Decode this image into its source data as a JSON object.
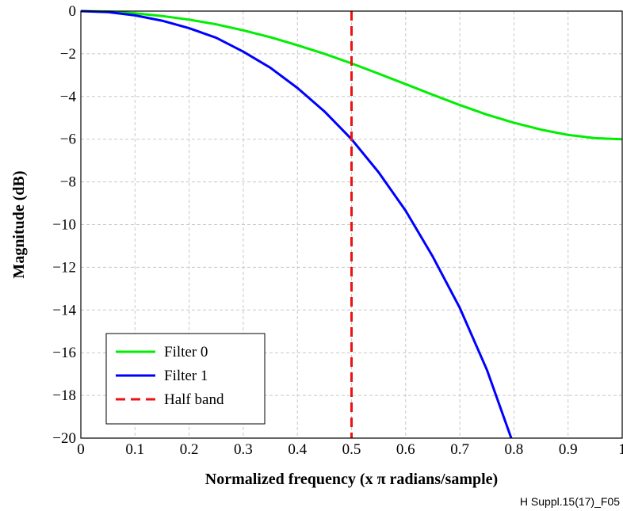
{
  "chart_data": {
    "type": "line",
    "xlabel": "Normalized frequency (x π radians/sample)",
    "ylabel": "Magnitude (dB)",
    "xlim": [
      0,
      1
    ],
    "ylim": [
      -20,
      0
    ],
    "x_ticks": [
      "0",
      "0.1",
      "0.2",
      "0.3",
      "0.4",
      "0.5",
      "0.6",
      "0.7",
      "0.8",
      "0.9",
      "1"
    ],
    "y_ticks": [
      "0",
      "−2",
      "−4",
      "−6",
      "−8",
      "−10",
      "−12",
      "−14",
      "−16",
      "−18",
      "−20"
    ],
    "grid": true,
    "legend_position": "bottom-left",
    "series": [
      {
        "name": "Filter 0",
        "color": "#00ee00",
        "style": "solid",
        "x": [
          0,
          0.05,
          0.1,
          0.15,
          0.2,
          0.25,
          0.3,
          0.35,
          0.4,
          0.45,
          0.5,
          0.55,
          0.6,
          0.65,
          0.7,
          0.75,
          0.8,
          0.85,
          0.9,
          0.95,
          1.0
        ],
        "y": [
          0,
          -0.02,
          -0.1,
          -0.23,
          -0.4,
          -0.62,
          -0.9,
          -1.22,
          -1.6,
          -2.0,
          -2.45,
          -2.93,
          -3.42,
          -3.92,
          -4.4,
          -4.85,
          -5.23,
          -5.55,
          -5.8,
          -5.95,
          -6.0
        ]
      },
      {
        "name": "Filter 1",
        "color": "#0000ff",
        "style": "solid",
        "x": [
          0,
          0.05,
          0.1,
          0.15,
          0.2,
          0.25,
          0.3,
          0.35,
          0.4,
          0.45,
          0.5,
          0.55,
          0.6,
          0.65,
          0.7,
          0.75,
          0.795
        ],
        "y": [
          0,
          -0.05,
          -0.2,
          -0.45,
          -0.8,
          -1.25,
          -1.9,
          -2.65,
          -3.6,
          -4.7,
          -6.0,
          -7.55,
          -9.35,
          -11.5,
          -13.9,
          -16.8,
          -20.0
        ]
      },
      {
        "name": "Half band",
        "color": "#ee1111",
        "style": "dashed",
        "x": [
          0.5,
          0.5
        ],
        "y": [
          0,
          -20
        ]
      }
    ]
  },
  "figure_ref": "H Suppl.15(17)_F05"
}
